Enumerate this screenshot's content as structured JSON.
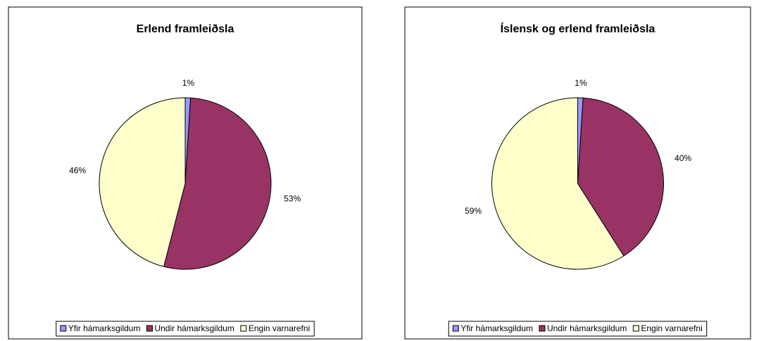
{
  "chart_data": [
    {
      "type": "pie",
      "title": "Erlend framleiðsla",
      "categories": [
        "Yfir hámarksgildum",
        "Undir hámarksgildum",
        "Engin varnarefni"
      ],
      "values": [
        1,
        53,
        46
      ],
      "value_labels": [
        "1%",
        "53%",
        "46%"
      ],
      "colors": [
        "#9999ff",
        "#993366",
        "#ffffcc"
      ],
      "legend": "bottom"
    },
    {
      "type": "pie",
      "title": "Íslensk og erlend framleiðsla",
      "categories": [
        "Yfir hámarksgildum",
        "Undir hámarksgildum",
        "Engin varnarefni"
      ],
      "values": [
        1,
        40,
        59
      ],
      "value_labels": [
        "1%",
        "40%",
        "59%"
      ],
      "colors": [
        "#9999ff",
        "#993366",
        "#ffffcc"
      ],
      "legend": "bottom"
    }
  ]
}
